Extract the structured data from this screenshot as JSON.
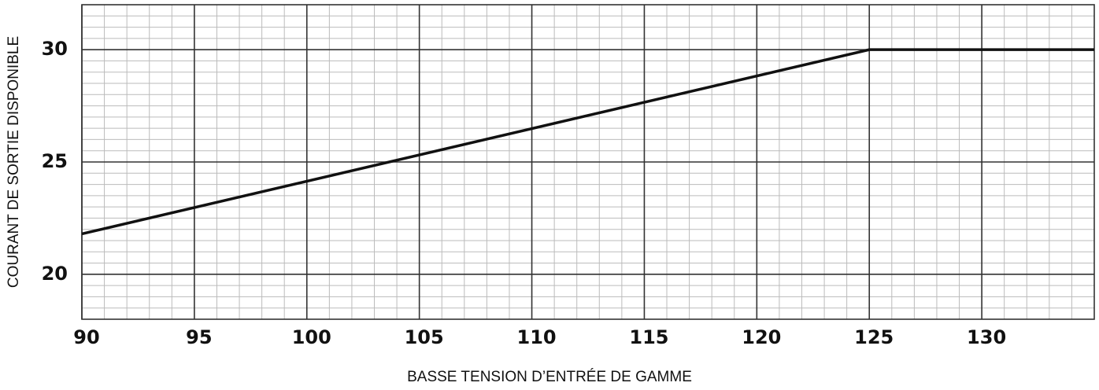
{
  "chart_data": {
    "type": "line",
    "xlabel": "BASSE TENSION D’ENTRÉE DE GAMME",
    "ylabel": "COURANT DE SORTIE DISPONIBLE",
    "x": [
      90,
      125,
      135
    ],
    "series": [
      {
        "color": "#111111",
        "values": [
          21.8,
          30,
          30
        ]
      }
    ],
    "xlim": [
      90,
      135
    ],
    "xticks": [
      90,
      95,
      100,
      105,
      110,
      115,
      120,
      125,
      130
    ],
    "ylim": [
      18,
      32
    ],
    "yticks": [
      20,
      25,
      30
    ],
    "grid": true
  }
}
